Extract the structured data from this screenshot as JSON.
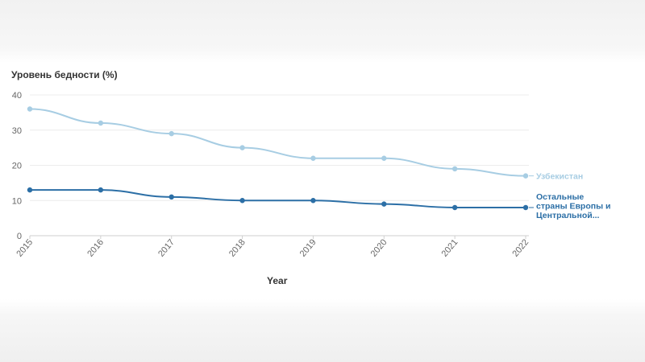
{
  "chart_data": {
    "type": "line",
    "title": "",
    "ylabel": "Уровень бедности (%)",
    "xlabel": "Year",
    "x": [
      "2015",
      "2016",
      "2017",
      "2018",
      "2019",
      "2020",
      "2021",
      "2022"
    ],
    "ylim": [
      0,
      40
    ],
    "yticks": [
      "0",
      "10",
      "20",
      "30",
      "40"
    ],
    "grid": true,
    "series": [
      {
        "name": "Узбекистан",
        "label_lines": [
          "Узбекистан"
        ],
        "color": "#a7cde3",
        "values": [
          36,
          32,
          29,
          25,
          22,
          22,
          19,
          17
        ]
      },
      {
        "name": "Остальные страны Европы и Центральной...",
        "label_lines": [
          "Остальные",
          "страны Европы и",
          "Центральной..."
        ],
        "color": "#2c6fa6",
        "values": [
          13,
          13,
          11,
          10,
          10,
          9,
          8,
          8
        ]
      }
    ]
  }
}
